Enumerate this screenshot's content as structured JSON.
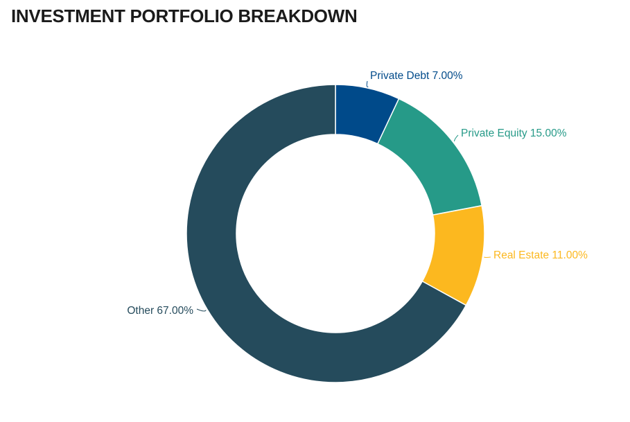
{
  "page": {
    "title": "INVESTMENT PORTFOLIO BREAKDOWN"
  },
  "chart_data": {
    "type": "pie",
    "variant": "donut",
    "title": "INVESTMENT PORTFOLIO BREAKDOWN",
    "legend": "none",
    "slices": [
      {
        "label": "Private Debt",
        "value": 7.0,
        "value_text": "7.00%",
        "color": "#004a8a"
      },
      {
        "label": "Private Equity",
        "value": 15.0,
        "value_text": "15.00%",
        "color": "#269a88"
      },
      {
        "label": "Real Estate",
        "value": 11.0,
        "value_text": "11.00%",
        "color": "#fcb81f"
      },
      {
        "label": "Other",
        "value": 67.0,
        "value_text": "67.00%",
        "color": "#254b5c"
      }
    ]
  }
}
